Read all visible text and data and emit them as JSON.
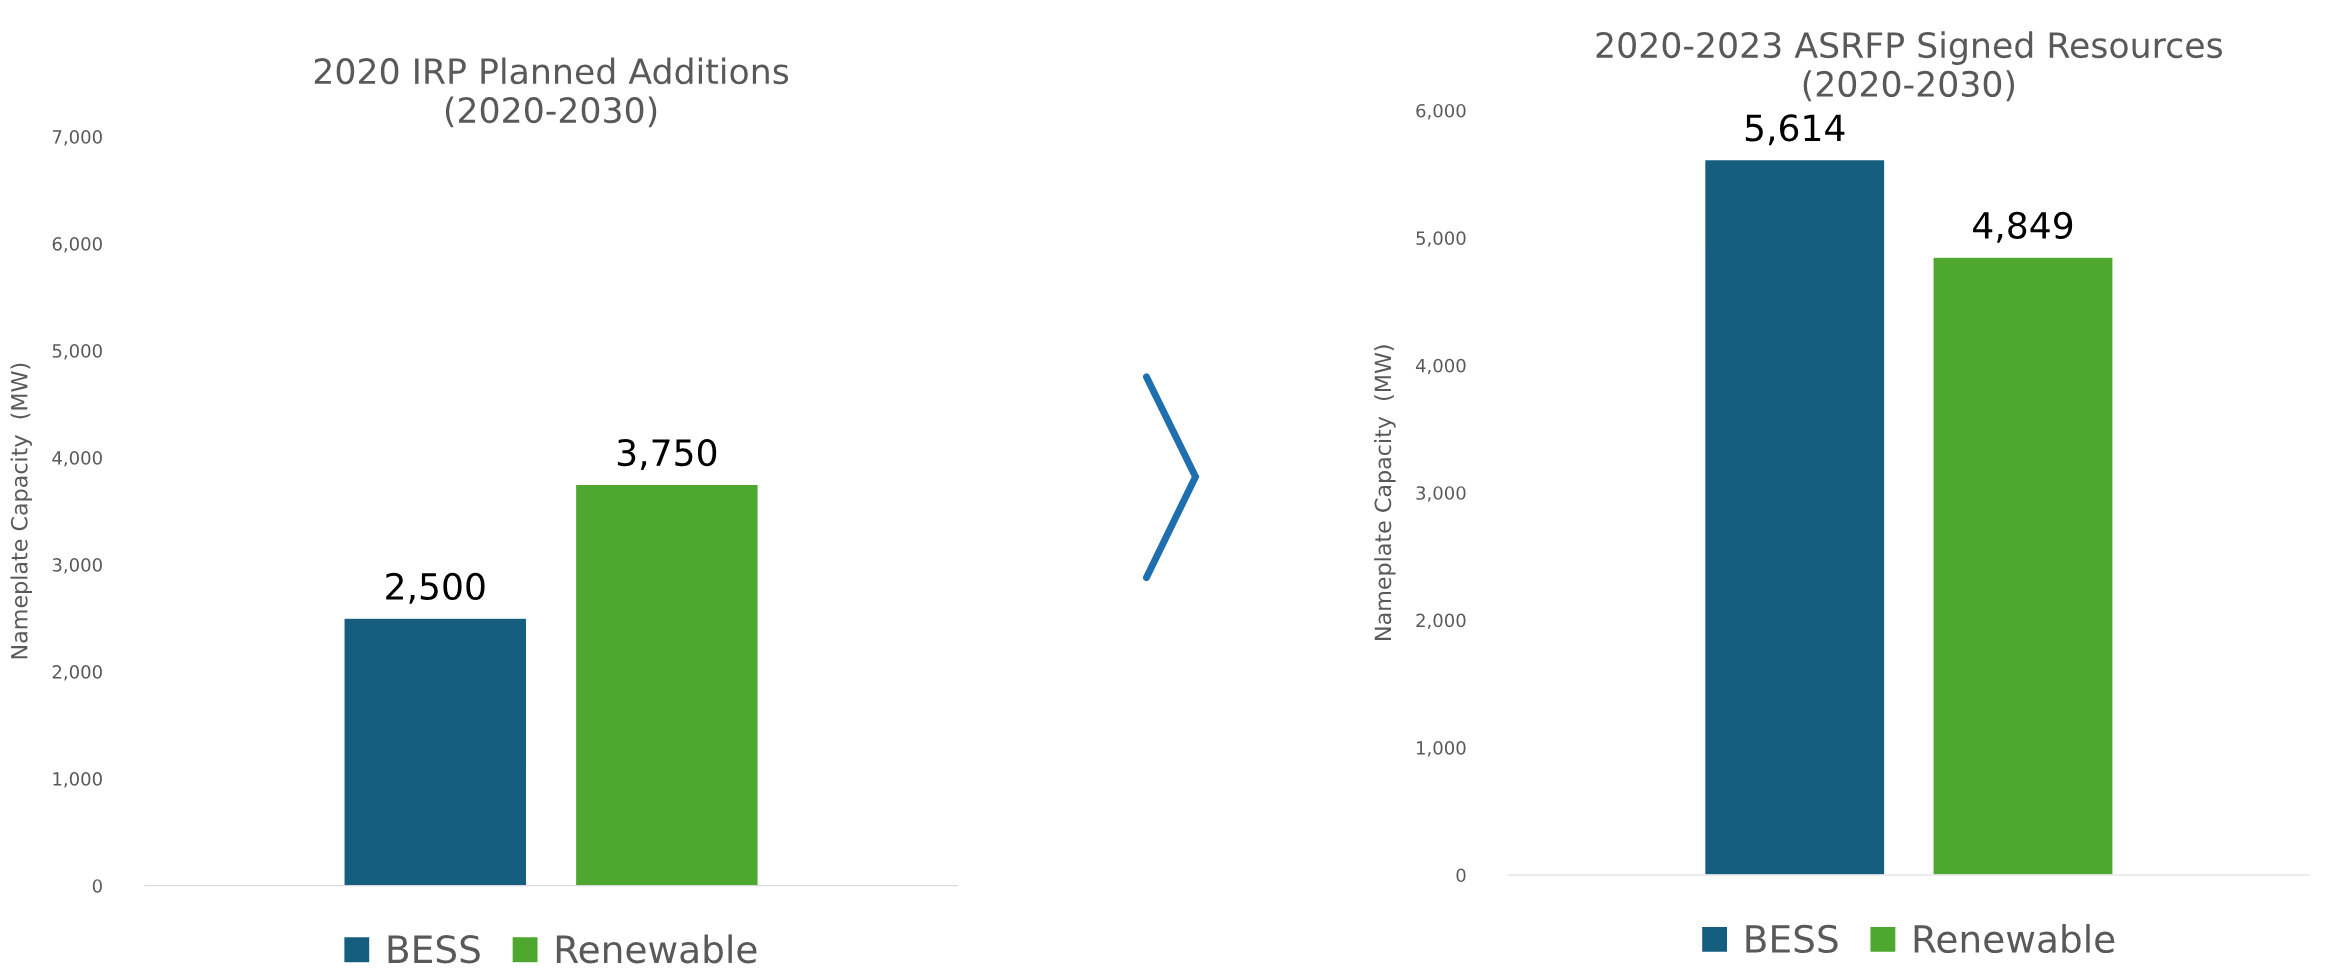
{
  "chart_data": [
    {
      "type": "bar",
      "title": "2020 IRP Planned Additions\n(2020-2030)",
      "ylabel": "Nameplate Capacity  (MW)",
      "categories": [
        null
      ],
      "series": [
        {
          "name": "BESS",
          "color": "#165e80",
          "values": [
            2500
          ],
          "value_labels": [
            "2,500"
          ]
        },
        {
          "name": "Renewable",
          "color": "#4ea72e",
          "values": [
            3750
          ],
          "value_labels": [
            "3,750"
          ]
        }
      ],
      "ylim": [
        0,
        7000
      ],
      "yticks": [
        {
          "value": 0,
          "label": "0"
        },
        {
          "value": 1000,
          "label": "1,000"
        },
        {
          "value": 2000,
          "label": "2,000"
        },
        {
          "value": 3000,
          "label": "3,000"
        },
        {
          "value": 4000,
          "label": "4,000"
        },
        {
          "value": 5000,
          "label": "5,000"
        },
        {
          "value": 6000,
          "label": "6,000"
        },
        {
          "value": 7000,
          "label": "7,000"
        }
      ],
      "legend": "bottom",
      "grid": false,
      "tick_labels": "y"
    },
    {
      "type": "bar",
      "title": "2020-2023 ASRFP Signed Resources\n(2020-2030)",
      "ylabel": "Nameplate Capacity  (MW)",
      "categories": [
        null
      ],
      "series": [
        {
          "name": "BESS",
          "color": "#165e80",
          "values": [
            5614
          ],
          "value_labels": [
            "5,614"
          ]
        },
        {
          "name": "Renewable",
          "color": "#4ea72e",
          "values": [
            4849
          ],
          "value_labels": [
            "4,849"
          ]
        }
      ],
      "ylim": [
        0,
        6000
      ],
      "yticks": [
        {
          "value": 0,
          "label": "0"
        },
        {
          "value": 1000,
          "label": "1,000"
        },
        {
          "value": 2000,
          "label": "2,000"
        },
        {
          "value": 3000,
          "label": "3,000"
        },
        {
          "value": 4000,
          "label": "4,000"
        },
        {
          "value": 5000,
          "label": "5,000"
        },
        {
          "value": 6000,
          "label": "6,000"
        }
      ],
      "legend": "bottom",
      "grid": false,
      "tick_labels": "y"
    }
  ]
}
